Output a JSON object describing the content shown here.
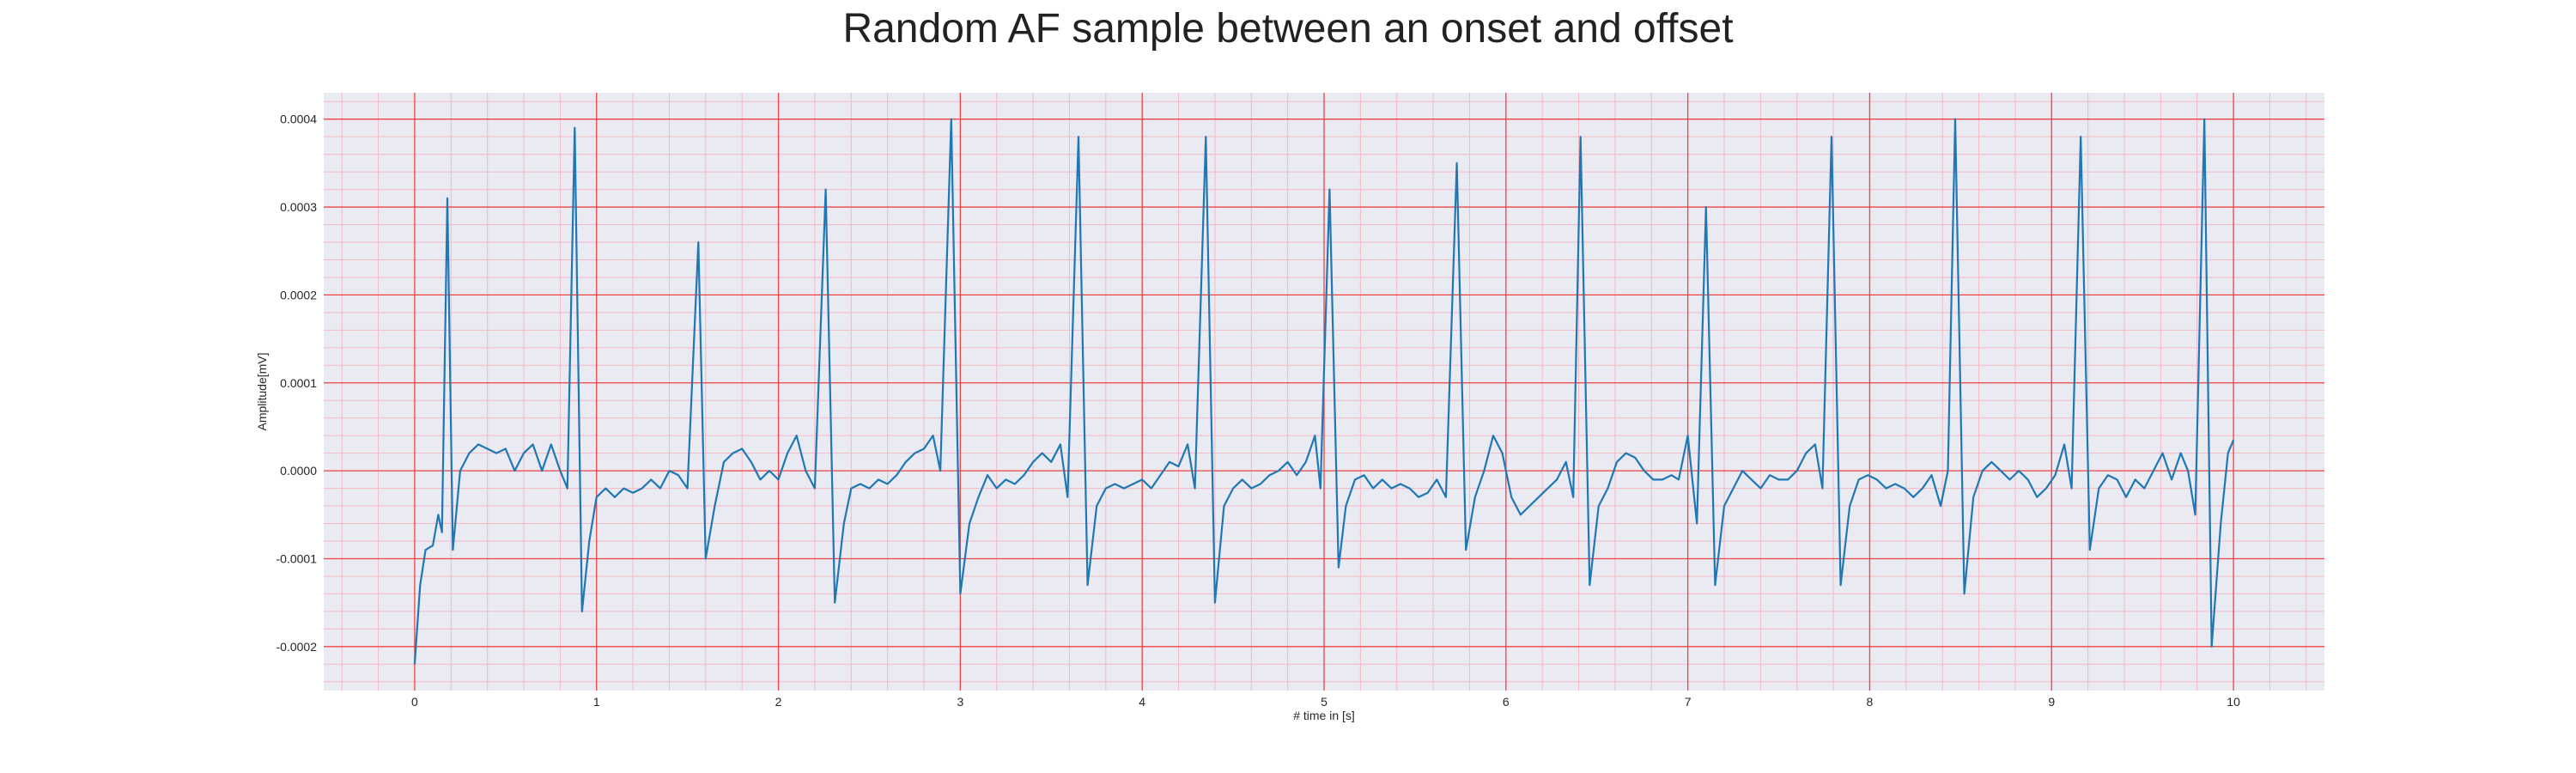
{
  "chart_data": {
    "type": "line",
    "title": "Random AF sample between an onset and offset",
    "xlabel": "# time in [s]",
    "ylabel": "Amplitude[mV]",
    "xlim": [
      -0.5,
      10.5
    ],
    "ylim": [
      -0.00025,
      0.00043
    ],
    "x_ticks": [
      0,
      1,
      2,
      3,
      4,
      5,
      6,
      7,
      8,
      9,
      10
    ],
    "x_tick_labels": [
      "0",
      "1",
      "2",
      "3",
      "4",
      "5",
      "6",
      "7",
      "8",
      "9",
      "10"
    ],
    "y_ticks": [
      -0.0002,
      -0.0001,
      0.0,
      0.0001,
      0.0002,
      0.0003,
      0.0004
    ],
    "y_tick_labels": [
      "-0.0002",
      "-0.0001",
      "0.0000",
      "0.0001",
      "0.0002",
      "0.0003",
      "0.0004"
    ],
    "grid": true,
    "minor_grid": true,
    "colors": {
      "line": "#1f77b4",
      "plot_background": "#eaeaf2",
      "major_grid": "#ee4444",
      "minor_grid": "#f4b8c4"
    },
    "series": [
      {
        "points": [
          [
            0.0,
            -0.00022
          ],
          [
            0.03,
            -0.00013
          ],
          [
            0.06,
            -9e-05
          ],
          [
            0.1,
            -8.5e-05
          ],
          [
            0.13,
            -5e-05
          ],
          [
            0.15,
            -7e-05
          ],
          [
            0.18,
            0.00031
          ],
          [
            0.21,
            -9e-05
          ],
          [
            0.25,
            0.0
          ],
          [
            0.3,
            2e-05
          ],
          [
            0.35,
            3e-05
          ],
          [
            0.4,
            2.5e-05
          ],
          [
            0.45,
            2e-05
          ],
          [
            0.5,
            2.5e-05
          ],
          [
            0.55,
            0.0
          ],
          [
            0.6,
            2e-05
          ],
          [
            0.65,
            3e-05
          ],
          [
            0.7,
            0.0
          ],
          [
            0.75,
            3e-05
          ],
          [
            0.8,
            0.0
          ],
          [
            0.84,
            -2e-05
          ],
          [
            0.88,
            0.00039
          ],
          [
            0.92,
            -0.00016
          ],
          [
            0.96,
            -8e-05
          ],
          [
            1.0,
            -3e-05
          ],
          [
            1.05,
            -2e-05
          ],
          [
            1.1,
            -3e-05
          ],
          [
            1.15,
            -2e-05
          ],
          [
            1.2,
            -2.5e-05
          ],
          [
            1.25,
            -2e-05
          ],
          [
            1.3,
            -1e-05
          ],
          [
            1.35,
            -2e-05
          ],
          [
            1.4,
            0.0
          ],
          [
            1.45,
            -5e-06
          ],
          [
            1.5,
            -2e-05
          ],
          [
            1.56,
            0.00026
          ],
          [
            1.6,
            -0.0001
          ],
          [
            1.65,
            -4e-05
          ],
          [
            1.7,
            1e-05
          ],
          [
            1.75,
            2e-05
          ],
          [
            1.8,
            2.5e-05
          ],
          [
            1.85,
            1e-05
          ],
          [
            1.9,
            -1e-05
          ],
          [
            1.95,
            0.0
          ],
          [
            2.0,
            -1e-05
          ],
          [
            2.05,
            2e-05
          ],
          [
            2.1,
            4e-05
          ],
          [
            2.15,
            0.0
          ],
          [
            2.2,
            -2e-05
          ],
          [
            2.26,
            0.00032
          ],
          [
            2.31,
            -0.00015
          ],
          [
            2.36,
            -6e-05
          ],
          [
            2.4,
            -2e-05
          ],
          [
            2.45,
            -1.5e-05
          ],
          [
            2.5,
            -2e-05
          ],
          [
            2.55,
            -1e-05
          ],
          [
            2.6,
            -1.5e-05
          ],
          [
            2.65,
            -5e-06
          ],
          [
            2.7,
            1e-05
          ],
          [
            2.75,
            2e-05
          ],
          [
            2.8,
            2.5e-05
          ],
          [
            2.85,
            4e-05
          ],
          [
            2.89,
            0.0
          ],
          [
            2.95,
            0.0004
          ],
          [
            3.0,
            -0.00014
          ],
          [
            3.05,
            -6e-05
          ],
          [
            3.1,
            -3e-05
          ],
          [
            3.15,
            -5e-06
          ],
          [
            3.2,
            -2e-05
          ],
          [
            3.25,
            -1e-05
          ],
          [
            3.3,
            -1.5e-05
          ],
          [
            3.35,
            -5e-06
          ],
          [
            3.4,
            1e-05
          ],
          [
            3.45,
            2e-05
          ],
          [
            3.5,
            1e-05
          ],
          [
            3.55,
            3e-05
          ],
          [
            3.59,
            -3e-05
          ],
          [
            3.65,
            0.00038
          ],
          [
            3.7,
            -0.00013
          ],
          [
            3.75,
            -4e-05
          ],
          [
            3.8,
            -2e-05
          ],
          [
            3.85,
            -1.5e-05
          ],
          [
            3.9,
            -2e-05
          ],
          [
            3.95,
            -1.5e-05
          ],
          [
            4.0,
            -1e-05
          ],
          [
            4.05,
            -2e-05
          ],
          [
            4.1,
            -5e-06
          ],
          [
            4.15,
            1e-05
          ],
          [
            4.2,
            5e-06
          ],
          [
            4.25,
            3e-05
          ],
          [
            4.29,
            -2e-05
          ],
          [
            4.35,
            0.00038
          ],
          [
            4.4,
            -0.00015
          ],
          [
            4.45,
            -4e-05
          ],
          [
            4.5,
            -2e-05
          ],
          [
            4.55,
            -1e-05
          ],
          [
            4.6,
            -2e-05
          ],
          [
            4.65,
            -1.5e-05
          ],
          [
            4.7,
            -5e-06
          ],
          [
            4.75,
            0.0
          ],
          [
            4.8,
            1e-05
          ],
          [
            4.85,
            -5e-06
          ],
          [
            4.9,
            1e-05
          ],
          [
            4.95,
            4e-05
          ],
          [
            4.98,
            -2e-05
          ],
          [
            5.03,
            0.00032
          ],
          [
            5.08,
            -0.00011
          ],
          [
            5.12,
            -4e-05
          ],
          [
            5.17,
            -1e-05
          ],
          [
            5.22,
            -5e-06
          ],
          [
            5.27,
            -2e-05
          ],
          [
            5.32,
            -1e-05
          ],
          [
            5.37,
            -2e-05
          ],
          [
            5.42,
            -1.5e-05
          ],
          [
            5.47,
            -2e-05
          ],
          [
            5.52,
            -3e-05
          ],
          [
            5.57,
            -2.5e-05
          ],
          [
            5.62,
            -1e-05
          ],
          [
            5.67,
            -3e-05
          ],
          [
            5.73,
            0.00035
          ],
          [
            5.78,
            -9e-05
          ],
          [
            5.83,
            -3e-05
          ],
          [
            5.88,
            0.0
          ],
          [
            5.93,
            4e-05
          ],
          [
            5.98,
            2e-05
          ],
          [
            6.03,
            -3e-05
          ],
          [
            6.08,
            -5e-05
          ],
          [
            6.13,
            -4e-05
          ],
          [
            6.18,
            -3e-05
          ],
          [
            6.23,
            -2e-05
          ],
          [
            6.28,
            -1e-05
          ],
          [
            6.33,
            1e-05
          ],
          [
            6.37,
            -3e-05
          ],
          [
            6.41,
            0.00038
          ],
          [
            6.46,
            -0.00013
          ],
          [
            6.51,
            -4e-05
          ],
          [
            6.56,
            -2e-05
          ],
          [
            6.61,
            1e-05
          ],
          [
            6.66,
            2e-05
          ],
          [
            6.71,
            1.5e-05
          ],
          [
            6.76,
            0.0
          ],
          [
            6.81,
            -1e-05
          ],
          [
            6.86,
            -1e-05
          ],
          [
            6.91,
            -5e-06
          ],
          [
            6.95,
            -1e-05
          ],
          [
            7.0,
            4e-05
          ],
          [
            7.05,
            -6e-05
          ],
          [
            7.1,
            0.0003
          ],
          [
            7.15,
            -0.00013
          ],
          [
            7.2,
            -4e-05
          ],
          [
            7.25,
            -2e-05
          ],
          [
            7.3,
            0.0
          ],
          [
            7.35,
            -1e-05
          ],
          [
            7.4,
            -2e-05
          ],
          [
            7.45,
            -5e-06
          ],
          [
            7.5,
            -1e-05
          ],
          [
            7.55,
            -1e-05
          ],
          [
            7.6,
            0.0
          ],
          [
            7.65,
            2e-05
          ],
          [
            7.7,
            3e-05
          ],
          [
            7.74,
            -2e-05
          ],
          [
            7.79,
            0.00038
          ],
          [
            7.84,
            -0.00013
          ],
          [
            7.89,
            -4e-05
          ],
          [
            7.94,
            -1e-05
          ],
          [
            7.99,
            -5e-06
          ],
          [
            8.04,
            -1e-05
          ],
          [
            8.09,
            -2e-05
          ],
          [
            8.14,
            -1.5e-05
          ],
          [
            8.19,
            -2e-05
          ],
          [
            8.24,
            -3e-05
          ],
          [
            8.29,
            -2e-05
          ],
          [
            8.34,
            -5e-06
          ],
          [
            8.39,
            -4e-05
          ],
          [
            8.43,
            0.0
          ],
          [
            8.47,
            0.0004
          ],
          [
            8.52,
            -0.00014
          ],
          [
            8.57,
            -3e-05
          ],
          [
            8.62,
            0.0
          ],
          [
            8.67,
            1e-05
          ],
          [
            8.72,
            0.0
          ],
          [
            8.77,
            -1e-05
          ],
          [
            8.82,
            0.0
          ],
          [
            8.87,
            -1e-05
          ],
          [
            8.92,
            -3e-05
          ],
          [
            8.97,
            -2e-05
          ],
          [
            9.02,
            -5e-06
          ],
          [
            9.07,
            3e-05
          ],
          [
            9.11,
            -2e-05
          ],
          [
            9.16,
            0.00038
          ],
          [
            9.21,
            -9e-05
          ],
          [
            9.26,
            -2e-05
          ],
          [
            9.31,
            -5e-06
          ],
          [
            9.36,
            -1e-05
          ],
          [
            9.41,
            -3e-05
          ],
          [
            9.46,
            -1e-05
          ],
          [
            9.51,
            -2e-05
          ],
          [
            9.56,
            0.0
          ],
          [
            9.61,
            2e-05
          ],
          [
            9.66,
            -1e-05
          ],
          [
            9.71,
            2e-05
          ],
          [
            9.75,
            0.0
          ],
          [
            9.79,
            -5e-05
          ],
          [
            9.84,
            0.0004
          ],
          [
            9.88,
            -0.0002
          ],
          [
            9.93,
            -6e-05
          ],
          [
            9.97,
            2e-05
          ],
          [
            10.0,
            3.5e-05
          ]
        ]
      }
    ]
  }
}
